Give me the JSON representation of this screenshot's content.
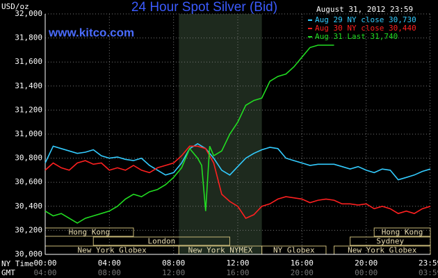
{
  "chart_data": {
    "type": "line",
    "title": "24 Hour Spot Silver (Bid)",
    "date": "August 31, 2012 23:59",
    "site": "www.kitco.com",
    "y_label": "USD/oz",
    "x_label": "NY Time",
    "x2_label": "GMT",
    "xlim": [
      0,
      24
    ],
    "ylim": [
      30000,
      32000
    ],
    "grid": true,
    "legend": "top-right",
    "yticks": [
      {
        "value": 30000,
        "label": "30,000"
      },
      {
        "value": 30200,
        "label": "30,200"
      },
      {
        "value": 30400,
        "label": "30,400"
      },
      {
        "value": 30600,
        "label": "30,600"
      },
      {
        "value": 30800,
        "label": "30,800"
      },
      {
        "value": 31000,
        "label": "31,000"
      },
      {
        "value": 31200,
        "label": "31,200"
      },
      {
        "value": 31400,
        "label": "31,400"
      },
      {
        "value": 31600,
        "label": "31,600"
      },
      {
        "value": 31800,
        "label": "31,800"
      },
      {
        "value": 32000,
        "label": "32,000"
      }
    ],
    "xticks": [
      {
        "value": 0,
        "label": "00:00"
      },
      {
        "value": 4,
        "label": "04:00"
      },
      {
        "value": 8,
        "label": "08:00"
      },
      {
        "value": 12,
        "label": "12:00"
      },
      {
        "value": 16,
        "label": "16:00"
      },
      {
        "value": 20,
        "label": "20:00"
      },
      {
        "value": 23.98,
        "label": "23:59"
      }
    ],
    "x2ticks": [
      {
        "value": 0,
        "label": "04:00"
      },
      {
        "value": 4,
        "label": "08:00"
      },
      {
        "value": 8,
        "label": "12:00"
      },
      {
        "value": 12,
        "label": "16:00"
      },
      {
        "value": 16,
        "label": "20:00"
      },
      {
        "value": 20,
        "label": "00:00"
      },
      {
        "value": 23.98,
        "label": "03:59"
      }
    ],
    "shaded": [
      8.33,
      13.5
    ],
    "sessions": [
      {
        "label": "Hong Kong",
        "start": 0,
        "end": 5.5,
        "row": 0
      },
      {
        "label": "London",
        "start": 3,
        "end": 11.5,
        "row": 1
      },
      {
        "label": "New York Globex",
        "start": 0,
        "end": 8.33,
        "row": 2
      },
      {
        "label": "New York NYMEX",
        "start": 8.33,
        "end": 13.5,
        "row": 2
      },
      {
        "label": "NY Globex",
        "start": 13.5,
        "end": 17.5,
        "row": 2
      },
      {
        "label": "Hong Kong",
        "start": 20.5,
        "end": 24,
        "row": 0
      },
      {
        "label": "Sydney",
        "start": 19,
        "end": 24,
        "row": 1
      },
      {
        "label": "New York Globex",
        "start": 18,
        "end": 24,
        "row": 2
      }
    ],
    "series": [
      {
        "name": "Aug 29 NY close 30,730",
        "color": "#33ccff",
        "x": [
          0,
          0.5,
          1,
          1.5,
          2,
          2.5,
          3,
          3.5,
          4,
          4.5,
          5,
          5.5,
          6,
          6.5,
          7,
          7.5,
          8,
          8.5,
          9,
          9.5,
          10,
          10.5,
          11,
          11.5,
          12,
          12.5,
          13,
          13.5,
          14,
          14.5,
          15,
          15.5,
          16,
          16.5,
          17,
          17.5,
          18,
          18.5,
          19,
          19.5,
          20,
          20.5,
          21,
          21.5,
          22,
          22.5,
          23,
          23.5,
          24
        ],
        "values": [
          30760,
          30900,
          30880,
          30860,
          30840,
          30850,
          30870,
          30820,
          30800,
          30810,
          30790,
          30780,
          30800,
          30740,
          30700,
          30660,
          30680,
          30760,
          30880,
          30920,
          30880,
          30800,
          30700,
          30660,
          30730,
          30800,
          30840,
          30870,
          30890,
          30880,
          30800,
          30780,
          30760,
          30740,
          30750,
          30750,
          30750,
          30730,
          30710,
          30730,
          30700,
          30680,
          30710,
          30700,
          30620,
          30640,
          30660,
          30690,
          30710
        ]
      },
      {
        "name": "Aug 30 NY close 30,440",
        "color": "#ff2020",
        "x": [
          0,
          0.5,
          1,
          1.5,
          2,
          2.5,
          3,
          3.5,
          4,
          4.5,
          5,
          5.5,
          6,
          6.5,
          7,
          7.5,
          8,
          8.5,
          9,
          9.5,
          10,
          10.5,
          11,
          11.5,
          12,
          12.5,
          13,
          13.5,
          14,
          14.5,
          15,
          15.5,
          16,
          16.5,
          17,
          17.5,
          18,
          18.5,
          19,
          19.5,
          20,
          20.5,
          21,
          21.5,
          22,
          22.5,
          23,
          23.5,
          24
        ],
        "values": [
          30700,
          30760,
          30720,
          30700,
          30760,
          30780,
          30750,
          30760,
          30700,
          30720,
          30700,
          30740,
          30700,
          30680,
          30720,
          30740,
          30760,
          30820,
          30900,
          30900,
          30880,
          30760,
          30500,
          30440,
          30400,
          30300,
          30330,
          30400,
          30420,
          30460,
          30480,
          30470,
          30460,
          30430,
          30450,
          30460,
          30450,
          30420,
          30420,
          30410,
          30420,
          30380,
          30400,
          30380,
          30340,
          30360,
          30340,
          30380,
          30400
        ]
      },
      {
        "name": "Aug 31 Last 31,740",
        "color": "#22dd22",
        "x": [
          0,
          0.5,
          1,
          1.5,
          2,
          2.5,
          3,
          3.5,
          4,
          4.5,
          5,
          5.5,
          6,
          6.5,
          7,
          7.5,
          8,
          8.5,
          9,
          9.5,
          9.75,
          10,
          10.25,
          10.5,
          11,
          11.5,
          12,
          12.5,
          13,
          13.5,
          14,
          14.5,
          15,
          15.5,
          16,
          16.5,
          17,
          17.5,
          18
        ],
        "values": [
          30360,
          30320,
          30340,
          30300,
          30260,
          30300,
          30320,
          30340,
          30360,
          30400,
          30460,
          30500,
          30480,
          30520,
          30540,
          30580,
          30640,
          30720,
          30880,
          30800,
          30740,
          30360,
          30900,
          30820,
          30860,
          31000,
          31100,
          31240,
          31280,
          31300,
          31440,
          31480,
          31500,
          31560,
          31640,
          31720,
          31740,
          31740,
          31740
        ]
      }
    ]
  }
}
